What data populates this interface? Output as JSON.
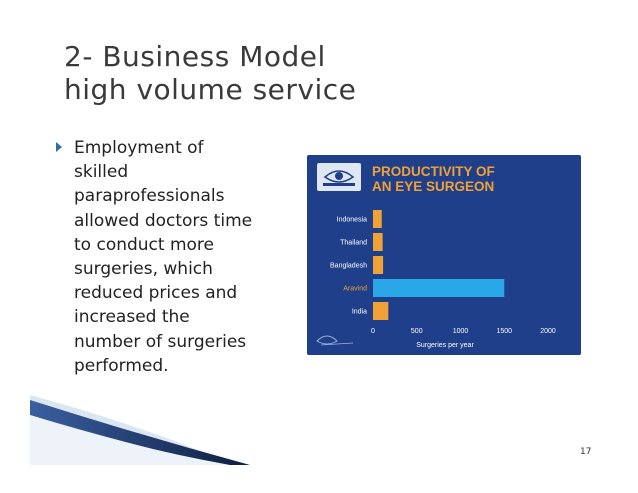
{
  "slide": {
    "title_lines": [
      "2- Business Model",
      "high volume service"
    ],
    "bullet_lines": [
      "Employment of",
      "skilled",
      "paraprofessionals",
      "allowed doctors time",
      "to conduct more",
      "surgeries, which",
      "reduced prices and",
      "increased the",
      "number of surgeries",
      "performed."
    ],
    "page_number": "17"
  },
  "chart_data": {
    "type": "bar",
    "orientation": "horizontal",
    "title_lines": [
      "PRODUCTIVITY OF",
      "AN EYE SURGEON"
    ],
    "categories": [
      "Indonesia",
      "Thailand",
      "Bangladesh",
      "Aravind",
      "India"
    ],
    "values": [
      100,
      110,
      115,
      1500,
      175
    ],
    "highlight_category": "Aravind",
    "xlabel": "Surgeries per year",
    "xticks": [
      "0",
      "500",
      "1000",
      "1500",
      "2000"
    ],
    "xlim": [
      0,
      2000
    ],
    "grid": false,
    "colors": {
      "background": "#1f3f8a",
      "bar": "#f0a236",
      "highlight_bar": "#2aa7e6",
      "highlight_label": "#f0a236",
      "title": "#f0a236",
      "text": "#ffffff"
    }
  }
}
